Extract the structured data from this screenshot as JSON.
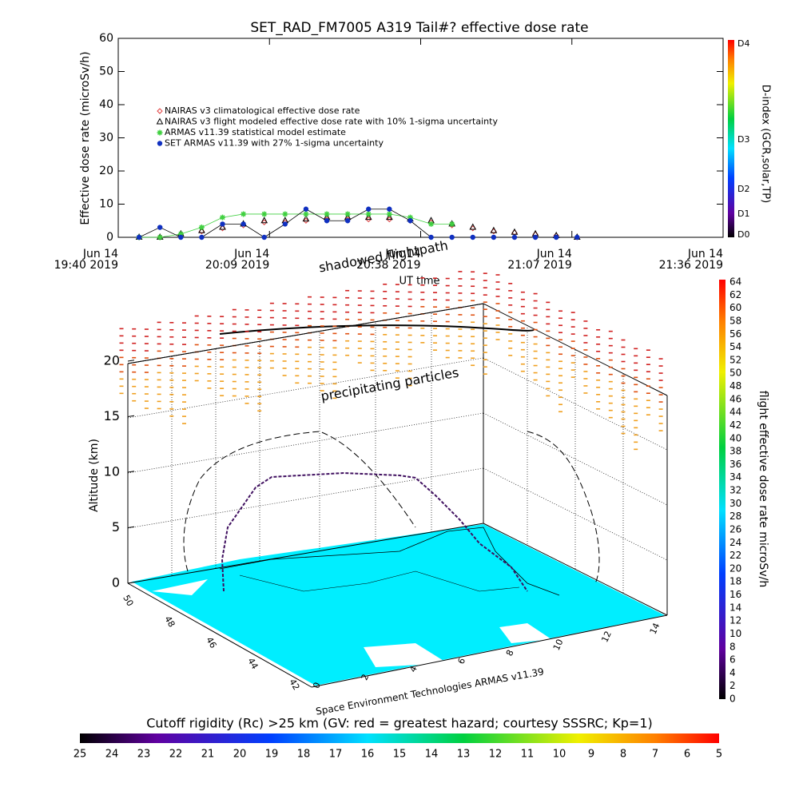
{
  "chart_data": [
    {
      "type": "line",
      "title": "SET_RAD_FM7005  A319 Tail#? effective dose rate",
      "ylabel": "Effective dose rate (microSv/h)",
      "xlabel": "UT time",
      "ylim": [
        0,
        60
      ],
      "yticks": [
        0,
        10,
        20,
        30,
        40,
        50,
        60
      ],
      "xlim": [
        "2019-06-14T19:40",
        "2019-06-14T21:36"
      ],
      "xticks": [
        {
          "value": "2019-06-14T19:40",
          "label": [
            "Jun 14",
            "19:40 2019"
          ]
        },
        {
          "value": "2019-06-14T20:09",
          "label": [
            "Jun 14",
            "20:09 2019"
          ]
        },
        {
          "value": "2019-06-14T20:38",
          "label": [
            "Jun 14",
            "20:38 2019"
          ]
        },
        {
          "value": "2019-06-14T21:07",
          "label": [
            "Jun 14",
            "21:07 2019"
          ]
        },
        {
          "value": "2019-06-14T21:36",
          "label": [
            "Jun 14",
            "21:36 2019"
          ]
        }
      ],
      "x": [
        "2019-06-14T19:44",
        "2019-06-14T19:48",
        "2019-06-14T19:52",
        "2019-06-14T19:56",
        "2019-06-14T20:00",
        "2019-06-14T20:04",
        "2019-06-14T20:08",
        "2019-06-14T20:12",
        "2019-06-14T20:16",
        "2019-06-14T20:20",
        "2019-06-14T20:24",
        "2019-06-14T20:28",
        "2019-06-14T20:32",
        "2019-06-14T20:36",
        "2019-06-14T20:40",
        "2019-06-14T20:44",
        "2019-06-14T20:48",
        "2019-06-14T20:52",
        "2019-06-14T20:56",
        "2019-06-14T21:00",
        "2019-06-14T21:04",
        "2019-06-14T21:08"
      ],
      "series": [
        {
          "name": "NAIRAS v3 climatological effective dose rate",
          "color": "#e04040",
          "marker": "diamond",
          "values": [
            0,
            0,
            0.9,
            1.8,
            2.7,
            3.6,
            4.5,
            4.5,
            5,
            5.4,
            5.4,
            5.4,
            5.4,
            5,
            4.5,
            3.6,
            2.7,
            1.8,
            1.4,
            0.9,
            0.5,
            0
          ]
        },
        {
          "name": "NAIRAS v3 flight modeled effective dose rate with 10% 1-sigma uncertainty",
          "color": "#000000",
          "marker": "triangle",
          "values": [
            0,
            0,
            1,
            2,
            3,
            4,
            5,
            5,
            5.5,
            6,
            6,
            6,
            6,
            5.5,
            5,
            4,
            3,
            2,
            1.5,
            1,
            0.5,
            0
          ]
        },
        {
          "name": "ARMAS v11.39 statistical model estimate",
          "color": "#40d040",
          "marker": "asterisk",
          "values": [
            0,
            0,
            1,
            3,
            6,
            7,
            7,
            7,
            7,
            7,
            7,
            7,
            7,
            6,
            4,
            4,
            null,
            null,
            null,
            null,
            null,
            null
          ]
        },
        {
          "name": "SET ARMAS v11.39 with 27% 1-sigma uncertainty",
          "color": "#1030c0",
          "marker": "circle",
          "values": [
            0,
            3,
            0,
            0,
            4,
            4,
            0,
            4,
            8.5,
            5,
            5,
            8.5,
            8.5,
            5,
            0,
            0,
            0,
            0,
            0,
            0,
            0,
            0
          ]
        }
      ],
      "colorbar": {
        "label": "D-index (GCR,solar,TP)",
        "ticks": [
          "D0",
          "D1",
          "D2",
          "D3",
          "D4"
        ]
      }
    },
    {
      "type": "3d",
      "zlabel": "Altitude (km)",
      "zticks": [
        0,
        5,
        10,
        15,
        20
      ],
      "lat_ticks": [
        42,
        44,
        46,
        48,
        50
      ],
      "lon_ticks": [
        0,
        2,
        4,
        6,
        8,
        10,
        12,
        14
      ],
      "annotations": [
        "shadowed flightpath",
        "precipitating particles",
        "Space Environment Technologies ARMAS v11.39"
      ]
    }
  ],
  "dose_colorbar": {
    "label": "flight effective dose rate microSv/h",
    "ticks": [
      0,
      2,
      4,
      6,
      8,
      10,
      12,
      14,
      16,
      18,
      20,
      22,
      24,
      26,
      28,
      30,
      32,
      34,
      36,
      38,
      40,
      42,
      44,
      46,
      48,
      50,
      52,
      54,
      56,
      58,
      60,
      62,
      64
    ]
  },
  "rigidity_colorbar": {
    "label": "Cutoff rigidity (Rc) >25 km (GV: red = greatest hazard; courtesy SSSRC; Kp=1)",
    "ticks": [
      25,
      24,
      23,
      22,
      21,
      20,
      19,
      18,
      17,
      16,
      15,
      14,
      13,
      12,
      11,
      10,
      9,
      8,
      7,
      6,
      5
    ]
  }
}
